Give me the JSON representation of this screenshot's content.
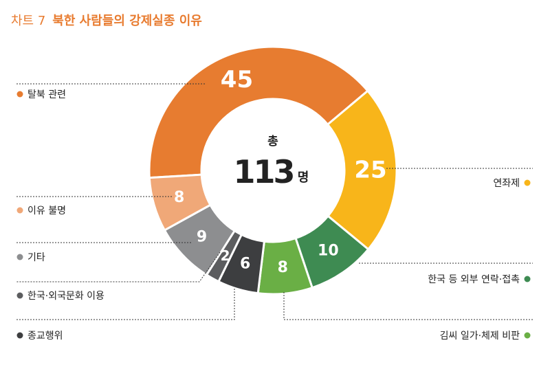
{
  "title": {
    "number": "차트 7",
    "text": "북한 사람들의 강제실종 이유"
  },
  "center": {
    "top": "총",
    "total": "113",
    "unit": "명"
  },
  "chart_data": {
    "type": "pie",
    "title": "북한 사람들의 강제실종 이유",
    "total": 113,
    "slices": [
      {
        "label": "탈북 관련",
        "value": 45,
        "color": "#e77c30"
      },
      {
        "label": "연좌제",
        "value": 25,
        "color": "#f8b51a"
      },
      {
        "label": "한국 등 외부 연락·접촉",
        "value": 10,
        "color": "#3e8b52"
      },
      {
        "label": "김씨 일가·체제 비판",
        "value": 8,
        "color": "#6aaf45"
      },
      {
        "label": "종교행위",
        "value": 6,
        "color": "#3d3e40"
      },
      {
        "label": "한국·외국문화 이용",
        "value": 2,
        "color": "#5c5d5f"
      },
      {
        "label": "기타",
        "value": 9,
        "color": "#8d8e90"
      },
      {
        "label": "이유 불명",
        "value": 8,
        "color": "#f0a878"
      }
    ]
  }
}
